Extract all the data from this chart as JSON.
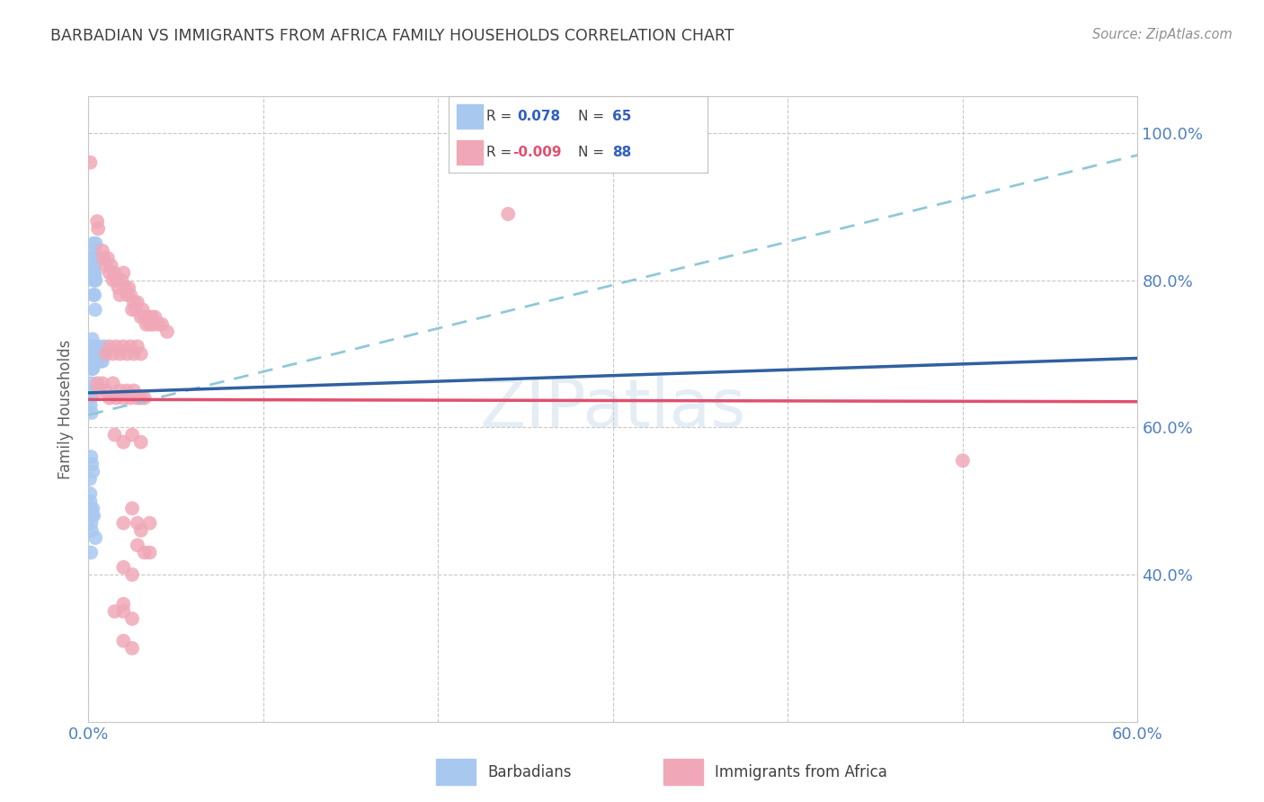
{
  "title": "BARBADIAN VS IMMIGRANTS FROM AFRICA FAMILY HOUSEHOLDS CORRELATION CHART",
  "source": "Source: ZipAtlas.com",
  "ylabel": "Family Households",
  "xmin": 0.0,
  "xmax": 0.6,
  "ymin": 0.2,
  "ymax": 1.05,
  "ytick_positions": [
    0.4,
    0.6,
    0.8,
    1.0
  ],
  "ytick_labels": [
    "40.0%",
    "60.0%",
    "80.0%",
    "100.0%"
  ],
  "xtick_positions": [
    0.0,
    0.1,
    0.2,
    0.3,
    0.4,
    0.5,
    0.6
  ],
  "xtick_labels": [
    "0.0%",
    "",
    "",
    "",
    "",
    "",
    "60.0%"
  ],
  "barbadian_color": "#a8c8f0",
  "africa_color": "#f0a8b8",
  "barbadian_line_color": "#3060a0",
  "africa_line_color": "#e05070",
  "trend_line_color": "#90c8d8",
  "background_color": "#ffffff",
  "grid_color": "#c8c8c8",
  "title_color": "#404040",
  "tick_color": "#5080c0",
  "watermark": "ZIPatlas",
  "barbadian_line_x0": 0.0,
  "barbadian_line_x1": 0.6,
  "barbadian_line_y0": 0.647,
  "barbadian_line_y1": 0.694,
  "africa_line_x0": 0.0,
  "africa_line_x1": 0.6,
  "africa_line_y0": 0.638,
  "africa_line_y1": 0.635,
  "trend_line_x0": 0.0,
  "trend_line_x1": 0.6,
  "trend_line_y0": 0.617,
  "trend_line_y1": 0.97,
  "barbadian_points": [
    [
      0.0015,
      0.66
    ],
    [
      0.002,
      0.7
    ],
    [
      0.0022,
      0.72
    ],
    [
      0.0025,
      0.68
    ],
    [
      0.0028,
      0.85
    ],
    [
      0.003,
      0.83
    ],
    [
      0.0032,
      0.82
    ],
    [
      0.0035,
      0.84
    ],
    [
      0.0038,
      0.81
    ],
    [
      0.004,
      0.8
    ],
    [
      0.0042,
      0.85
    ],
    [
      0.0015,
      0.82
    ],
    [
      0.0018,
      0.81
    ],
    [
      0.002,
      0.83
    ],
    [
      0.0025,
      0.8
    ],
    [
      0.0028,
      0.78
    ],
    [
      0.003,
      0.81
    ],
    [
      0.0035,
      0.78
    ],
    [
      0.0038,
      0.76
    ],
    [
      0.004,
      0.8
    ],
    [
      0.0008,
      0.7
    ],
    [
      0.001,
      0.71
    ],
    [
      0.0012,
      0.69
    ],
    [
      0.0014,
      0.7
    ],
    [
      0.0016,
      0.68
    ],
    [
      0.0018,
      0.71
    ],
    [
      0.002,
      0.69
    ],
    [
      0.0022,
      0.7
    ],
    [
      0.0024,
      0.68
    ],
    [
      0.0026,
      0.7
    ],
    [
      0.0028,
      0.69
    ],
    [
      0.003,
      0.71
    ],
    [
      0.0032,
      0.7
    ],
    [
      0.0034,
      0.69
    ],
    [
      0.0036,
      0.7
    ],
    [
      0.004,
      0.69
    ],
    [
      0.0045,
      0.7
    ],
    [
      0.005,
      0.69
    ],
    [
      0.0055,
      0.7
    ],
    [
      0.006,
      0.71
    ],
    [
      0.0065,
      0.7
    ],
    [
      0.007,
      0.69
    ],
    [
      0.0075,
      0.7
    ],
    [
      0.008,
      0.69
    ],
    [
      0.0085,
      0.7
    ],
    [
      0.009,
      0.71
    ],
    [
      0.001,
      0.65
    ],
    [
      0.0012,
      0.63
    ],
    [
      0.0015,
      0.64
    ],
    [
      0.0018,
      0.62
    ],
    [
      0.0008,
      0.48
    ],
    [
      0.001,
      0.5
    ],
    [
      0.0012,
      0.49
    ],
    [
      0.0015,
      0.47
    ],
    [
      0.0018,
      0.46
    ],
    [
      0.002,
      0.48
    ],
    [
      0.0025,
      0.49
    ],
    [
      0.003,
      0.48
    ],
    [
      0.0014,
      0.43
    ],
    [
      0.004,
      0.45
    ],
    [
      0.0015,
      0.56
    ],
    [
      0.002,
      0.55
    ],
    [
      0.0025,
      0.54
    ],
    [
      0.001,
      0.51
    ],
    [
      0.0008,
      0.53
    ]
  ],
  "africa_points": [
    [
      0.001,
      0.96
    ],
    [
      0.005,
      0.88
    ],
    [
      0.0055,
      0.87
    ],
    [
      0.008,
      0.84
    ],
    [
      0.0085,
      0.83
    ],
    [
      0.01,
      0.82
    ],
    [
      0.011,
      0.83
    ],
    [
      0.012,
      0.81
    ],
    [
      0.013,
      0.82
    ],
    [
      0.014,
      0.8
    ],
    [
      0.015,
      0.81
    ],
    [
      0.016,
      0.8
    ],
    [
      0.017,
      0.79
    ],
    [
      0.018,
      0.78
    ],
    [
      0.019,
      0.8
    ],
    [
      0.02,
      0.81
    ],
    [
      0.021,
      0.79
    ],
    [
      0.022,
      0.78
    ],
    [
      0.023,
      0.79
    ],
    [
      0.024,
      0.78
    ],
    [
      0.025,
      0.76
    ],
    [
      0.026,
      0.77
    ],
    [
      0.027,
      0.76
    ],
    [
      0.028,
      0.77
    ],
    [
      0.03,
      0.75
    ],
    [
      0.031,
      0.76
    ],
    [
      0.032,
      0.75
    ],
    [
      0.033,
      0.74
    ],
    [
      0.034,
      0.75
    ],
    [
      0.035,
      0.74
    ],
    [
      0.036,
      0.75
    ],
    [
      0.037,
      0.74
    ],
    [
      0.038,
      0.75
    ],
    [
      0.04,
      0.74
    ],
    [
      0.042,
      0.74
    ],
    [
      0.045,
      0.73
    ],
    [
      0.01,
      0.7
    ],
    [
      0.012,
      0.71
    ],
    [
      0.014,
      0.7
    ],
    [
      0.016,
      0.71
    ],
    [
      0.018,
      0.7
    ],
    [
      0.02,
      0.71
    ],
    [
      0.022,
      0.7
    ],
    [
      0.024,
      0.71
    ],
    [
      0.026,
      0.7
    ],
    [
      0.028,
      0.71
    ],
    [
      0.03,
      0.7
    ],
    [
      0.005,
      0.66
    ],
    [
      0.006,
      0.65
    ],
    [
      0.008,
      0.66
    ],
    [
      0.01,
      0.65
    ],
    [
      0.012,
      0.64
    ],
    [
      0.014,
      0.66
    ],
    [
      0.016,
      0.64
    ],
    [
      0.018,
      0.65
    ],
    [
      0.02,
      0.64
    ],
    [
      0.022,
      0.65
    ],
    [
      0.024,
      0.64
    ],
    [
      0.026,
      0.65
    ],
    [
      0.028,
      0.64
    ],
    [
      0.03,
      0.64
    ],
    [
      0.032,
      0.64
    ],
    [
      0.015,
      0.59
    ],
    [
      0.02,
      0.58
    ],
    [
      0.025,
      0.59
    ],
    [
      0.03,
      0.58
    ],
    [
      0.02,
      0.47
    ],
    [
      0.025,
      0.49
    ],
    [
      0.028,
      0.47
    ],
    [
      0.03,
      0.46
    ],
    [
      0.035,
      0.47
    ],
    [
      0.028,
      0.44
    ],
    [
      0.032,
      0.43
    ],
    [
      0.035,
      0.43
    ],
    [
      0.02,
      0.41
    ],
    [
      0.025,
      0.4
    ],
    [
      0.02,
      0.35
    ],
    [
      0.025,
      0.34
    ],
    [
      0.02,
      0.31
    ],
    [
      0.025,
      0.3
    ],
    [
      0.015,
      0.35
    ],
    [
      0.02,
      0.36
    ],
    [
      0.5,
      0.555
    ],
    [
      0.24,
      0.89
    ]
  ]
}
